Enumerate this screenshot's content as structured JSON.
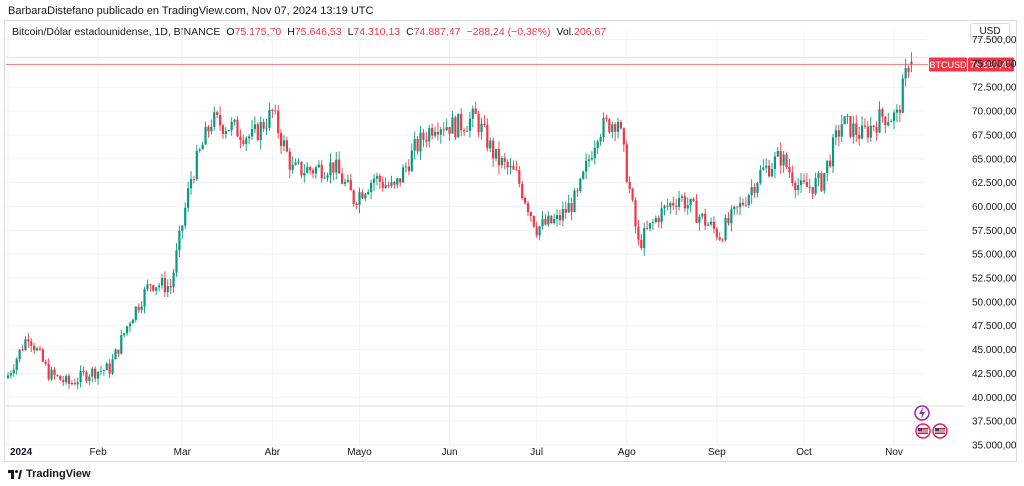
{
  "credit": "BarbaraDistefano publicado en TradingView.com, Nov 07, 2024 13:19 UTC",
  "currency": "USD",
  "footer_brand": "TradingView",
  "legend": {
    "symbol": "Bitcoin/Dólar estadounidense, 1D, BINANCE",
    "open_label": "O",
    "open": "75.175,70",
    "high_label": "H",
    "high": "75.646,53",
    "low_label": "L",
    "low": "74.310,13",
    "close_label": "C",
    "close": "74.887,47",
    "change": "−288,24 (−0,38%)",
    "vol_label": "Vol.",
    "vol": "206,67"
  },
  "colors": {
    "up": "#089981",
    "down": "#f23645",
    "grid": "#f0f3fa",
    "axis_text": "#131722",
    "price_line": "#f23645"
  },
  "chart_data": {
    "type": "candlestick",
    "ticker": "BTCUSD",
    "last_price": 74887.47,
    "last_price_label": "74.887,47",
    "ylim": [
      35000,
      78500
    ],
    "y_ticks": [
      {
        "v": 77500,
        "label": "77.500,00"
      },
      {
        "v": 75000,
        "label": "75.000,00"
      },
      {
        "v": 72500,
        "label": "72.500,00"
      },
      {
        "v": 70000,
        "label": "70.000,00"
      },
      {
        "v": 67500,
        "label": "67.500,00"
      },
      {
        "v": 65000,
        "label": "65.000,00"
      },
      {
        "v": 62500,
        "label": "62.500,00"
      },
      {
        "v": 60000,
        "label": "60.000,00"
      },
      {
        "v": 57500,
        "label": "57.500,00"
      },
      {
        "v": 55000,
        "label": "55.000,00"
      },
      {
        "v": 52500,
        "label": "52.500,00"
      },
      {
        "v": 50000,
        "label": "50.000,00"
      },
      {
        "v": 47500,
        "label": "47.500,00"
      },
      {
        "v": 45000,
        "label": "45.000,00"
      },
      {
        "v": 42500,
        "label": "42.500,00"
      },
      {
        "v": 40000,
        "label": "40.000,00"
      },
      {
        "v": 37500,
        "label": "37.500,00"
      },
      {
        "v": 35000,
        "label": "35.000,00"
      }
    ],
    "x_ticks": [
      {
        "day": 0,
        "label": "2024",
        "bold": true
      },
      {
        "day": 31,
        "label": "Feb"
      },
      {
        "day": 60,
        "label": "Mar"
      },
      {
        "day": 91,
        "label": "Abr"
      },
      {
        "day": 121,
        "label": "Mayo"
      },
      {
        "day": 152,
        "label": "Jun"
      },
      {
        "day": 182,
        "label": "Jul"
      },
      {
        "day": 213,
        "label": "Ago"
      },
      {
        "day": 244,
        "label": "Sep"
      },
      {
        "day": 274,
        "label": "Oct"
      },
      {
        "day": 305,
        "label": "Nov"
      }
    ],
    "weekly_closes": [
      [
        0,
        42300
      ],
      [
        7,
        46600
      ],
      [
        14,
        42500
      ],
      [
        21,
        41400
      ],
      [
        28,
        42600
      ],
      [
        35,
        43000
      ],
      [
        42,
        48200
      ],
      [
        49,
        52000
      ],
      [
        56,
        51600
      ],
      [
        63,
        63000
      ],
      [
        70,
        69000
      ],
      [
        77,
        68300
      ],
      [
        84,
        67200
      ],
      [
        91,
        69800
      ],
      [
        98,
        63800
      ],
      [
        105,
        63900
      ],
      [
        112,
        64300
      ],
      [
        119,
        60800
      ],
      [
        126,
        63000
      ],
      [
        133,
        61800
      ],
      [
        140,
        66000
      ],
      [
        147,
        68800
      ],
      [
        154,
        68400
      ],
      [
        161,
        69300
      ],
      [
        168,
        65000
      ],
      [
        175,
        63200
      ],
      [
        182,
        57800
      ],
      [
        189,
        58500
      ],
      [
        196,
        61000
      ],
      [
        203,
        68000
      ],
      [
        210,
        69200
      ],
      [
        217,
        56000
      ],
      [
        224,
        59100
      ],
      [
        231,
        61100
      ],
      [
        238,
        59000
      ],
      [
        245,
        57000
      ],
      [
        252,
        60000
      ],
      [
        259,
        63500
      ],
      [
        266,
        65200
      ],
      [
        273,
        61800
      ],
      [
        280,
        62600
      ],
      [
        287,
        68800
      ],
      [
        294,
        67500
      ],
      [
        301,
        69500
      ],
      [
        306,
        69400
      ],
      [
        310,
        75000
      ],
      [
        311,
        74887.47
      ]
    ]
  }
}
